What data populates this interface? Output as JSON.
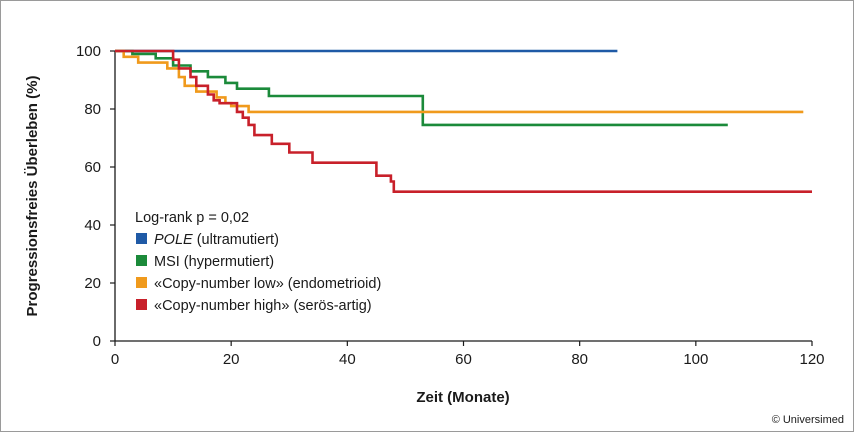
{
  "chart_data": {
    "type": "line",
    "step": true,
    "xlabel": "Zeit (Monate)",
    "ylabel": "Progressionsfreies Überleben (%)",
    "xlim": [
      0,
      120
    ],
    "ylim": [
      0,
      100
    ],
    "xticks": [
      0,
      20,
      40,
      60,
      80,
      100,
      120
    ],
    "yticks": [
      0,
      20,
      40,
      60,
      80,
      100
    ],
    "grid": false,
    "legend_position": "bottom-left",
    "annotation": "Log-rank p = 0,02",
    "series": [
      {
        "name": "POLE (ultramutiert)",
        "name_italic": "POLE",
        "name_rest": " (ultramutiert)",
        "color": "#1f5aa6",
        "points": [
          [
            0,
            100
          ],
          [
            86.5,
            100
          ]
        ]
      },
      {
        "name": "MSI (hypermutiert)",
        "color": "#1b8a3a",
        "points": [
          [
            0,
            100
          ],
          [
            3,
            100
          ],
          [
            3,
            99
          ],
          [
            7,
            99
          ],
          [
            7,
            97.5
          ],
          [
            10,
            97.5
          ],
          [
            10,
            95
          ],
          [
            13,
            95
          ],
          [
            13,
            93
          ],
          [
            16,
            93
          ],
          [
            16,
            91
          ],
          [
            19,
            91
          ],
          [
            19,
            89
          ],
          [
            21,
            89
          ],
          [
            21,
            87
          ],
          [
            26.5,
            87
          ],
          [
            26.5,
            84.5
          ],
          [
            53,
            84.5
          ],
          [
            53,
            74.5
          ],
          [
            105.5,
            74.5
          ]
        ]
      },
      {
        "name": "«Copy-number low» (endometrioid)",
        "color": "#f09a1c",
        "points": [
          [
            0,
            100
          ],
          [
            1.5,
            100
          ],
          [
            1.5,
            98
          ],
          [
            4,
            98
          ],
          [
            4,
            96
          ],
          [
            9,
            96
          ],
          [
            9,
            94
          ],
          [
            11,
            94
          ],
          [
            11,
            91
          ],
          [
            12,
            91
          ],
          [
            12,
            88
          ],
          [
            14,
            88
          ],
          [
            14,
            86
          ],
          [
            17.5,
            86
          ],
          [
            17.5,
            84
          ],
          [
            19,
            84
          ],
          [
            19,
            82
          ],
          [
            20,
            82
          ],
          [
            20,
            81
          ],
          [
            23,
            81
          ],
          [
            23,
            79
          ],
          [
            118.5,
            79
          ]
        ]
      },
      {
        "name": "«Copy-number high» (serös-artig)",
        "color": "#c8202a",
        "points": [
          [
            0,
            100
          ],
          [
            10,
            100
          ],
          [
            10,
            97
          ],
          [
            11,
            97
          ],
          [
            11,
            94
          ],
          [
            13,
            94
          ],
          [
            13,
            91
          ],
          [
            14,
            91
          ],
          [
            14,
            88
          ],
          [
            16,
            88
          ],
          [
            16,
            85
          ],
          [
            17,
            85
          ],
          [
            17,
            83
          ],
          [
            18,
            83
          ],
          [
            18,
            82
          ],
          [
            21,
            82
          ],
          [
            21,
            79
          ],
          [
            22,
            79
          ],
          [
            22,
            77
          ],
          [
            23,
            77
          ],
          [
            23,
            74.5
          ],
          [
            24,
            74.5
          ],
          [
            24,
            71
          ],
          [
            27,
            71
          ],
          [
            27,
            68
          ],
          [
            30,
            68
          ],
          [
            30,
            65
          ],
          [
            34,
            65
          ],
          [
            34,
            61.5
          ],
          [
            45,
            61.5
          ],
          [
            45,
            57
          ],
          [
            47.5,
            57
          ],
          [
            47.5,
            55
          ],
          [
            48,
            55
          ],
          [
            48,
            51.5
          ],
          [
            120,
            51.5
          ]
        ]
      }
    ]
  },
  "credit": "© Universimed"
}
